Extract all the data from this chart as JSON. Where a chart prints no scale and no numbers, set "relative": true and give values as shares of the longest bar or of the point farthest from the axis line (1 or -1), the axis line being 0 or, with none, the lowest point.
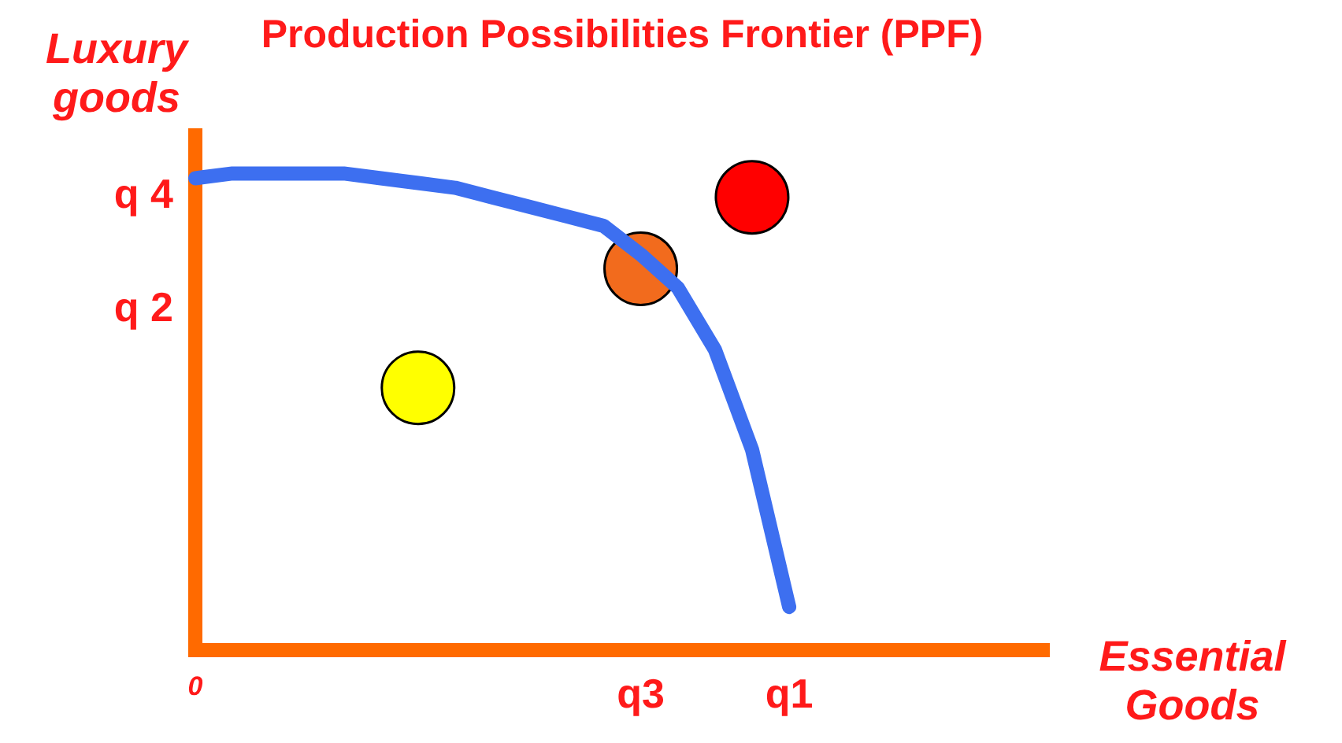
{
  "chart_data": {
    "type": "line",
    "title": "Production Possibilities Frontier (PPF)",
    "xlabel": "Essential Goods",
    "ylabel": "Luxury goods",
    "relative": true,
    "grid": false,
    "legend": false,
    "categories": [
      "0",
      null,
      null,
      null,
      null,
      null,
      null,
      null,
      null,
      null,
      null,
      null,
      "q3",
      null,
      null,
      null,
      "q1",
      null,
      null,
      null,
      null,
      null,
      null,
      null
    ],
    "annotations": [
      "q 4",
      "q 2"
    ],
    "series": [
      {
        "type": "line",
        "color": "#3d6ff0",
        "marker": "none",
        "line_style": "solid",
        "values": [
          0.99,
          1,
          1,
          1,
          1,
          0.99,
          0.98,
          0.97,
          0.95,
          0.93,
          0.91,
          0.89,
          0.83,
          0.76,
          0.63,
          0.42,
          0.09,
          null,
          null,
          null,
          null,
          null,
          null,
          null
        ]
      },
      {
        "type": "scatter",
        "marker": "circle",
        "values": [
          null,
          null,
          null,
          null,
          null,
          null,
          0.55,
          null,
          null,
          null,
          null,
          null,
          0.8,
          null,
          null,
          0.95,
          null,
          null,
          null,
          null,
          null,
          null,
          null,
          null
        ],
        "colors": [
          null,
          null,
          null,
          null,
          null,
          null,
          "#ffff00",
          null,
          null,
          null,
          null,
          null,
          "#f26b1d",
          null,
          null,
          "#ff0000",
          null,
          null,
          null,
          null,
          null,
          null,
          null,
          null
        ]
      }
    ]
  }
}
